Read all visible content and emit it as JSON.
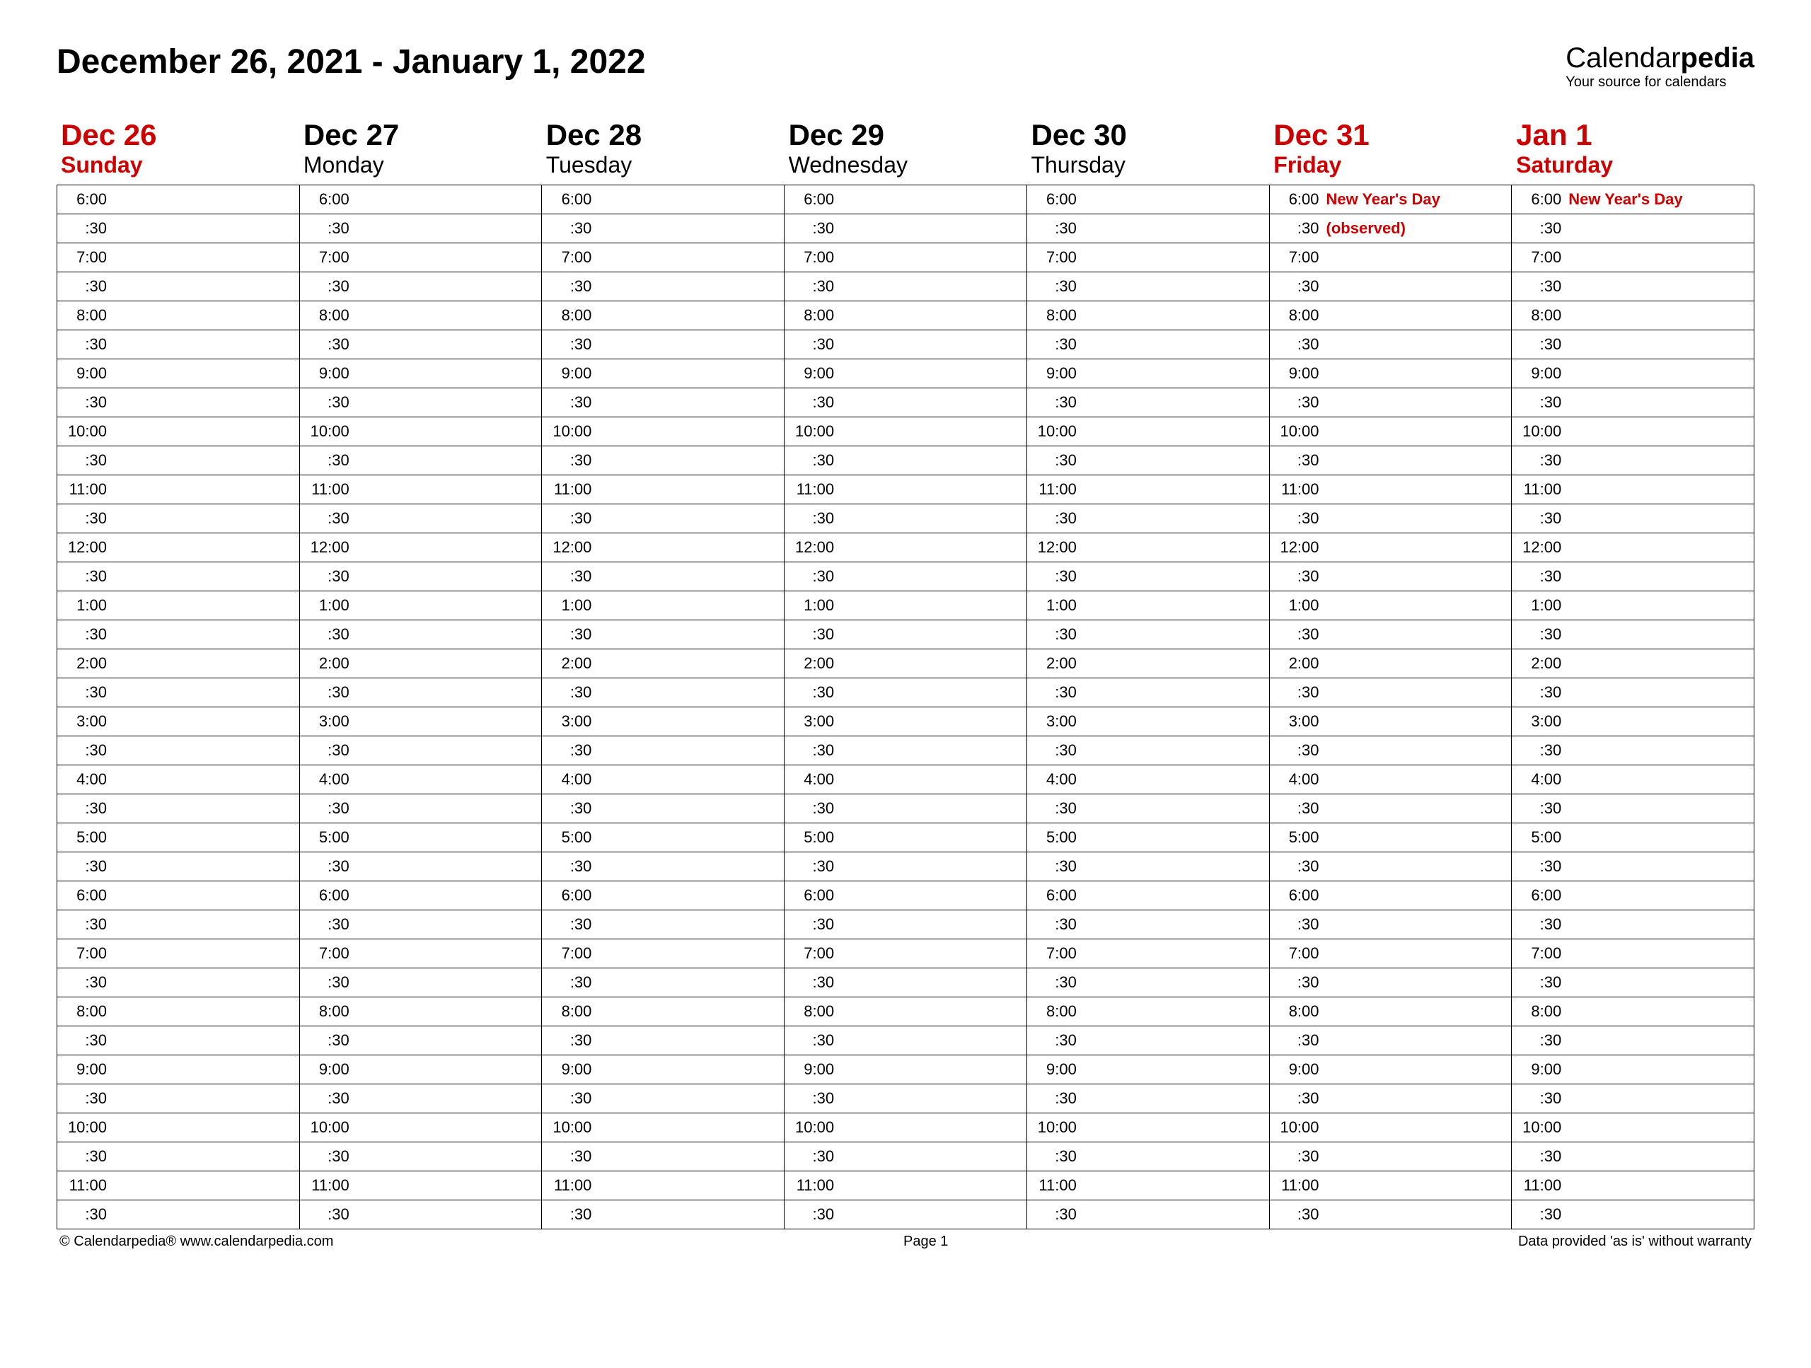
{
  "title": "December 26, 2021 - January 1, 2022",
  "brand": {
    "name_prefix": "Calendar",
    "name_suffix": "pedia",
    "tagline": "Your source for calendars"
  },
  "colors": {
    "highlight": "#cc0000",
    "text": "#000000",
    "border": "#000000"
  },
  "days": [
    {
      "date": "Dec 26",
      "name": "Sunday",
      "highlight": true,
      "events": {}
    },
    {
      "date": "Dec 27",
      "name": "Monday",
      "highlight": false,
      "events": {}
    },
    {
      "date": "Dec 28",
      "name": "Tuesday",
      "highlight": false,
      "events": {}
    },
    {
      "date": "Dec 29",
      "name": "Wednesday",
      "highlight": false,
      "events": {}
    },
    {
      "date": "Dec 30",
      "name": "Thursday",
      "highlight": false,
      "events": {}
    },
    {
      "date": "Dec 31",
      "name": "Friday",
      "highlight": true,
      "events": {
        "0": "New Year's Day",
        "1": "(observed)"
      }
    },
    {
      "date": "Jan 1",
      "name": "Saturday",
      "highlight": true,
      "events": {
        "0": "New Year's Day"
      }
    }
  ],
  "time_slots": [
    "6:00",
    ":30",
    "7:00",
    ":30",
    "8:00",
    ":30",
    "9:00",
    ":30",
    "10:00",
    ":30",
    "11:00",
    ":30",
    "12:00",
    ":30",
    "1:00",
    ":30",
    "2:00",
    ":30",
    "3:00",
    ":30",
    "4:00",
    ":30",
    "5:00",
    ":30",
    "6:00",
    ":30",
    "7:00",
    ":30",
    "8:00",
    ":30",
    "9:00",
    ":30",
    "10:00",
    ":30",
    "11:00",
    ":30"
  ],
  "footer": {
    "left": "© Calendarpedia®   www.calendarpedia.com",
    "center": "Page 1",
    "right": "Data provided 'as is' without warranty"
  }
}
